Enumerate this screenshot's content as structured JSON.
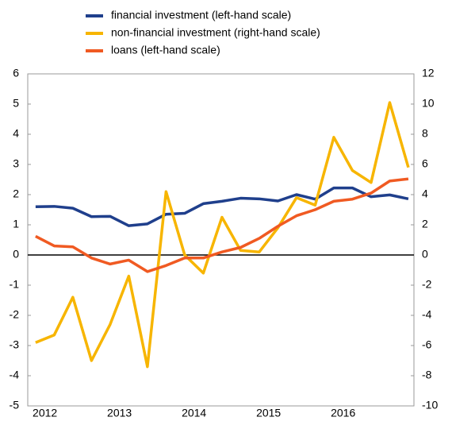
{
  "chart_data": {
    "type": "line",
    "x": [
      2012.375,
      2012.625,
      2012.875,
      2013.125,
      2013.375,
      2013.625,
      2013.875,
      2014.125,
      2014.375,
      2014.625,
      2014.875,
      2015.125,
      2015.375,
      2015.625,
      2015.875,
      2016.125,
      2016.375,
      2016.625,
      2016.875,
      2017.125,
      2017.375
    ],
    "series": [
      {
        "name": "financial investment (left-hand scale)",
        "color": "#1f3f8c",
        "values": [
          1.6,
          1.61,
          1.55,
          1.27,
          1.28,
          0.97,
          1.03,
          1.35,
          1.38,
          1.7,
          1.78,
          1.88,
          1.86,
          1.79,
          2.0,
          1.85,
          2.22,
          2.22,
          1.93,
          1.99,
          1.86
        ]
      },
      {
        "name": "non-financial investment (right-hand scale)",
        "color": "#f7b500",
        "axis": "y2",
        "values": [
          -5.8,
          -5.3,
          -2.8,
          -7.0,
          -4.6,
          -1.4,
          -7.4,
          4.2,
          0.0,
          -1.2,
          2.5,
          0.3,
          0.2,
          1.8,
          3.8,
          3.3,
          7.8,
          5.6,
          4.8,
          10.1,
          5.8
        ]
      },
      {
        "name": "loans (left-hand scale)",
        "color": "#f05a22",
        "values": [
          0.62,
          0.3,
          0.27,
          -0.1,
          -0.3,
          -0.17,
          -0.55,
          -0.35,
          -0.1,
          -0.1,
          0.1,
          0.25,
          0.55,
          0.95,
          1.3,
          1.5,
          1.78,
          1.85,
          2.05,
          2.45,
          2.52
        ]
      }
    ],
    "xlim": [
      2012.27,
      2017.45
    ],
    "xticks": [
      {
        "value": 2012.5,
        "label": "2012"
      },
      {
        "value": 2013.5,
        "label": "2013"
      },
      {
        "value": 2014.5,
        "label": "2014"
      },
      {
        "value": 2015.5,
        "label": "2015"
      },
      {
        "value": 2016.5,
        "label": "2016"
      }
    ],
    "ylim": [
      -5,
      6
    ],
    "yticks": [
      -5,
      -4,
      -3,
      -2,
      -1,
      0,
      1,
      2,
      3,
      4,
      5,
      6
    ],
    "y2lim": [
      -10,
      12
    ],
    "y2ticks": [
      -10,
      -8,
      -6,
      -4,
      -2,
      0,
      2,
      4,
      6,
      8,
      10,
      12
    ],
    "legend": "top"
  }
}
